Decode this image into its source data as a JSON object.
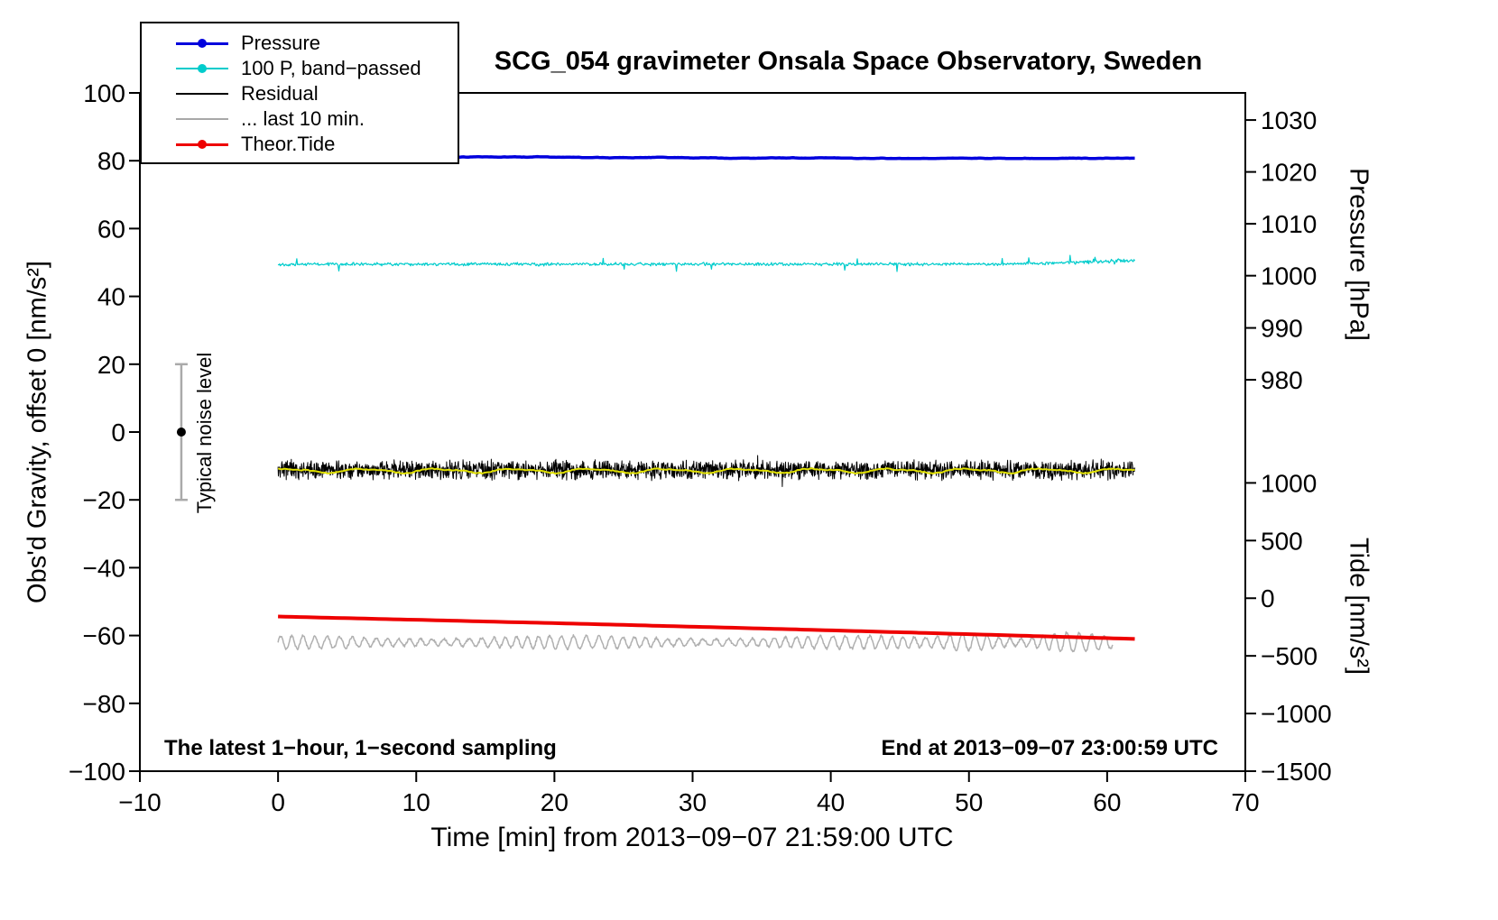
{
  "chart_data": {
    "type": "line",
    "title": "SCG_054 gravimeter Onsala Space Observatory, Sweden",
    "xlabel": "Time [min] from 2013−09−07 21:59:00 UTC",
    "x_axis": {
      "range": [
        -10,
        70
      ],
      "ticks": [
        -10,
        0,
        10,
        20,
        30,
        40,
        50,
        60,
        70
      ]
    },
    "left_axis": {
      "label": "Obs'd Gravity, offset 0 [nm/s²]",
      "range": [
        -100,
        100
      ],
      "ticks": [
        100,
        80,
        60,
        40,
        20,
        0,
        -20,
        -40,
        -60,
        -80,
        -100
      ]
    },
    "pressure_axis": {
      "label": "Pressure [hPa]",
      "ticks": [
        1030,
        1020,
        1010,
        1000,
        990,
        980
      ],
      "ticks_left_units": [
        92.0,
        76.7,
        61.4,
        46.1,
        30.7,
        15.4
      ]
    },
    "tide_axis": {
      "label": "Tide [nm/s²]",
      "ticks": [
        1000,
        500,
        0,
        -500,
        -1000,
        -1500
      ],
      "ticks_left_units": [
        -15,
        -32,
        -49,
        -66,
        -83,
        -100
      ]
    },
    "annotations": {
      "left": "The latest 1−hour, 1−second sampling",
      "right": "End at 2013−09−07 23:00:59 UTC"
    },
    "noise_bar": {
      "label": "Typical noise level",
      "x": -7,
      "y_center": 0,
      "y_halfwidth": 20
    },
    "legend": [
      {
        "label": "Pressure",
        "color": "#0000dd",
        "marker": "dot",
        "line_width": 3
      },
      {
        "label": "100 P, band−passed",
        "color": "#00cccc",
        "marker": "dot",
        "line_width": 2
      },
      {
        "label": "Residual",
        "color": "#000000",
        "marker": "line",
        "line_width": 2.5
      },
      {
        "label": "... last 10 min.",
        "color": "#a8a8a8",
        "marker": "line",
        "line_width": 2.5
      },
      {
        "label": "Theor.Tide",
        "color": "#ee0000",
        "marker": "dot",
        "line_width": 3
      }
    ],
    "series": [
      {
        "name": "pressure",
        "color": "#0000dd",
        "width": 3.5,
        "kind": "walk",
        "x_start": 0,
        "x_end": 62,
        "points": 500,
        "seed": 11,
        "base": 81.1,
        "step": 0.1,
        "range": 0.45,
        "value_hpa_mean": 1022.8
      },
      {
        "name": "bandpassed-pressure",
        "color": "#00cccc",
        "width": 1.2,
        "kind": "noise",
        "x_start": 0,
        "x_end": 62,
        "points": 1100,
        "seed": 22,
        "base": 49.5,
        "amp": 0.55,
        "spike_prob": 0.012,
        "spike_amp": 1.8,
        "end_rise": 1.6
      },
      {
        "name": "residual",
        "color": "#000000",
        "width": 1,
        "kind": "noise",
        "x_start": 0,
        "x_end": 62,
        "points": 2400,
        "seed": 33,
        "base": -11.2,
        "amp": 3.3,
        "spike_prob": 0.004,
        "spike_amp": 2.5,
        "end_rise": 0
      },
      {
        "name": "residual-smoothed",
        "color": "#e0e000",
        "width": 2,
        "kind": "smooth",
        "x_start": 0,
        "x_end": 62,
        "points": 400,
        "seed": 44,
        "base": -11.4,
        "amp": 0.55,
        "jitter": 0.3
      },
      {
        "name": "residual-last-10-min",
        "color": "#b0b0b0",
        "width": 1.5,
        "kind": "osc",
        "x_start": 0,
        "x_end": 60.4,
        "points": 1400,
        "seed": 55,
        "base": -62.0,
        "amp": 1.0,
        "amp_var": 0.9,
        "period": 0.85,
        "jitter": 0.35,
        "late_boost_x": 46,
        "late_boost": 1.4
      },
      {
        "name": "theor-tide",
        "color": "#ee0000",
        "width": 4,
        "kind": "trend",
        "x_start": 0,
        "x_end": 62,
        "points": 120,
        "seed": 66,
        "y_start": -54.4,
        "y_end": -61.0,
        "bow": 0.2,
        "tide_start_nms2": -150,
        "tide_end_nms2": -345
      }
    ]
  }
}
